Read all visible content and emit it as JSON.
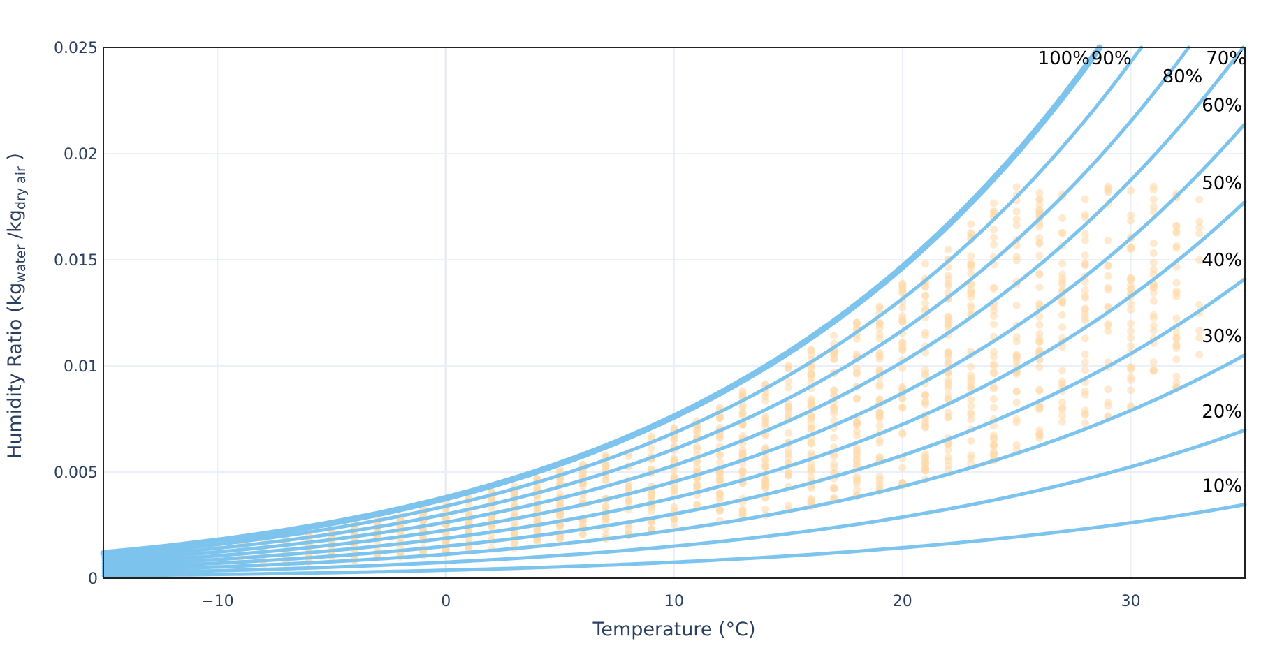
{
  "chart_data": {
    "type": "scatter",
    "xlabel": "Temperature (°C)",
    "ylabel": {
      "main": "Humidity Ratio (kg",
      "sub1": "water",
      "mid": " /kg",
      "sub2": "dry air",
      "end": " )"
    },
    "xlim": [
      -15,
      35
    ],
    "ylim": [
      0,
      0.025
    ],
    "x_ticks": [
      -10,
      0,
      10,
      20,
      30
    ],
    "x_tick_labels": [
      "−10",
      "0",
      "10",
      "20",
      "30"
    ],
    "y_ticks": [
      0,
      0.005,
      0.01,
      0.015,
      0.02,
      0.025
    ],
    "y_tick_labels": [
      "0",
      "0.005",
      "0.01",
      "0.015",
      "0.02",
      "0.025"
    ],
    "grid": true,
    "line_color": "#7cc4ee",
    "point_color": "#ffd9a8",
    "pressure_kpa": 101.325,
    "rh_curves": [
      {
        "label": "100%",
        "rh": 1.0
      },
      {
        "label": "90%",
        "rh": 0.9
      },
      {
        "label": "80%",
        "rh": 0.8
      },
      {
        "label": "70%",
        "rh": 0.7
      },
      {
        "label": "60%",
        "rh": 0.6
      },
      {
        "label": "50%",
        "rh": 0.5
      },
      {
        "label": "40%",
        "rh": 0.4
      },
      {
        "label": "30%",
        "rh": 0.3
      },
      {
        "label": "20%",
        "rh": 0.2
      },
      {
        "label": "10%",
        "rh": 0.1
      }
    ],
    "scatter_cloud": {
      "x_range": [
        -14,
        33
      ],
      "rh_range": [
        0.3,
        0.95
      ],
      "approx_point_count": 1500
    }
  }
}
